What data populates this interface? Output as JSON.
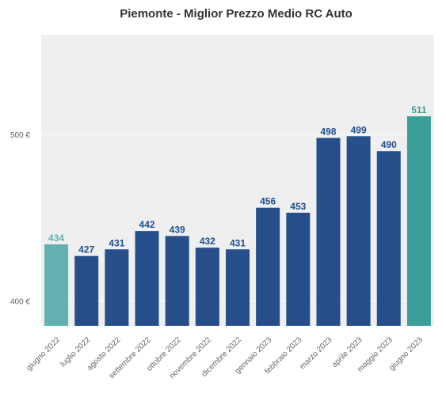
{
  "chart_data": {
    "type": "bar",
    "title": "Piemonte - Miglior Prezzo Medio RC Auto",
    "xlabel": "",
    "ylabel": "",
    "categories": [
      "giugno 2022",
      "luglio 2022",
      "agosto 2022",
      "settembre 2022",
      "ottobre 2022",
      "novembre 2022",
      "dicembre 2022",
      "gennaio 2023",
      "febbraio 2023",
      "marzo 2023",
      "aprile 2023",
      "maggio 2023",
      "giugno 2023"
    ],
    "values": [
      434,
      427,
      431,
      442,
      439,
      432,
      431,
      456,
      453,
      498,
      499,
      490,
      511
    ],
    "data_labels": [
      "434",
      "427",
      "431",
      "442",
      "439",
      "432",
      "431",
      "456",
      "453",
      "498",
      "499",
      "490",
      "511"
    ],
    "yticks": [
      400,
      500
    ],
    "ytick_labels": [
      "400 €",
      "500 €"
    ],
    "ylim": [
      385,
      560
    ],
    "grid": true,
    "legend": "none",
    "colors": {
      "background": "#efefef",
      "gridline": "#ffffff",
      "bar_default": "#264e8a",
      "bar_first": "#62b1b0",
      "bar_last": "#3a9e99",
      "label_default": "#1f4e8c",
      "label_first": "#62b1b0",
      "label_last": "#3a9e99"
    }
  }
}
